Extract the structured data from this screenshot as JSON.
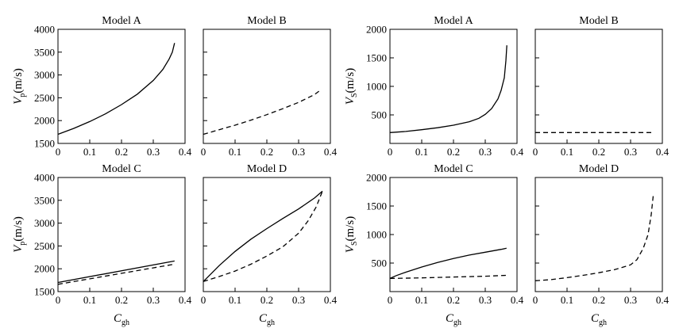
{
  "chart_data": [
    {
      "type": "line",
      "title": "Model A",
      "xlim": [
        0,
        0.4
      ],
      "ylim": [
        1500,
        4000
      ],
      "xticks": [
        0,
        0.1,
        0.2,
        0.3,
        0.4
      ],
      "yticks": [
        1500,
        2000,
        2500,
        3000,
        3500,
        4000
      ],
      "ytick_labels": [
        "1500",
        "2000",
        "2500",
        "3000",
        "3500",
        "4000"
      ],
      "xlabel": "",
      "ylabel": "V_p(m/s)",
      "series": [
        {
          "style": "solid",
          "x": [
            0,
            0.05,
            0.1,
            0.15,
            0.2,
            0.25,
            0.3,
            0.33,
            0.35,
            0.36,
            0.367
          ],
          "y": [
            1700,
            1830,
            1980,
            2150,
            2350,
            2580,
            2880,
            3120,
            3350,
            3500,
            3700
          ]
        }
      ]
    },
    {
      "type": "line",
      "title": "Model B",
      "xlim": [
        0,
        0.4
      ],
      "ylim": [
        1500,
        4000
      ],
      "xticks": [
        0,
        0.1,
        0.2,
        0.3,
        0.4
      ],
      "yticks": [
        1500,
        2000,
        2500,
        3000,
        3500,
        4000
      ],
      "ytick_labels": [],
      "xlabel": "",
      "ylabel": "",
      "series": [
        {
          "style": "dashed",
          "x": [
            0,
            0.05,
            0.1,
            0.15,
            0.2,
            0.25,
            0.3,
            0.35,
            0.367
          ],
          "y": [
            1700,
            1800,
            1900,
            2010,
            2130,
            2260,
            2400,
            2570,
            2660
          ]
        }
      ]
    },
    {
      "type": "line",
      "title": "Model A",
      "xlim": [
        0,
        0.4
      ],
      "ylim": [
        0,
        2000
      ],
      "xticks": [
        0,
        0.1,
        0.2,
        0.3,
        0.4
      ],
      "yticks": [
        500,
        1000,
        1500,
        2000
      ],
      "ytick_labels": [
        "500",
        "1000",
        "1500",
        "2000"
      ],
      "xlabel": "",
      "ylabel": "V_S(m/s)",
      "series": [
        {
          "style": "solid",
          "x": [
            0,
            0.05,
            0.1,
            0.15,
            0.2,
            0.25,
            0.28,
            0.3,
            0.32,
            0.34,
            0.35,
            0.36,
            0.365,
            0.368
          ],
          "y": [
            190,
            210,
            240,
            275,
            320,
            380,
            440,
            510,
            610,
            780,
            930,
            1150,
            1450,
            1720
          ]
        }
      ]
    },
    {
      "type": "line",
      "title": "Model B",
      "xlim": [
        0,
        0.4
      ],
      "ylim": [
        0,
        2000
      ],
      "xticks": [
        0,
        0.1,
        0.2,
        0.3,
        0.4
      ],
      "yticks": [
        500,
        1000,
        1500,
        2000
      ],
      "ytick_labels": [],
      "xlabel": "",
      "ylabel": "",
      "series": [
        {
          "style": "dashed",
          "x": [
            0,
            0.367
          ],
          "y": [
            190,
            190
          ]
        }
      ]
    },
    {
      "type": "line",
      "title": "Model C",
      "xlim": [
        0,
        0.4
      ],
      "ylim": [
        1500,
        4000
      ],
      "xticks": [
        0,
        0.1,
        0.2,
        0.3,
        0.4
      ],
      "yticks": [
        1500,
        2000,
        2500,
        3000,
        3500,
        4000
      ],
      "ytick_labels": [
        "1500",
        "2000",
        "2500",
        "3000",
        "3500",
        "4000"
      ],
      "xlabel": "C_gh",
      "ylabel": "V_p(m/s)",
      "series": [
        {
          "style": "solid",
          "x": [
            0,
            0.367
          ],
          "y": [
            1700,
            2170
          ]
        },
        {
          "style": "dashed",
          "x": [
            0,
            0.367
          ],
          "y": [
            1660,
            2100
          ]
        }
      ]
    },
    {
      "type": "line",
      "title": "Model D",
      "xlim": [
        0,
        0.4
      ],
      "ylim": [
        1500,
        4000
      ],
      "xticks": [
        0,
        0.1,
        0.2,
        0.3,
        0.4
      ],
      "yticks": [
        1500,
        2000,
        2500,
        3000,
        3500,
        4000
      ],
      "ytick_labels": [],
      "xlabel": "C_gh",
      "ylabel": "",
      "series": [
        {
          "style": "solid",
          "x": [
            0,
            0.05,
            0.1,
            0.15,
            0.2,
            0.25,
            0.3,
            0.35,
            0.375
          ],
          "y": [
            1720,
            2070,
            2380,
            2650,
            2880,
            3100,
            3310,
            3550,
            3700
          ]
        },
        {
          "style": "dashed",
          "x": [
            0,
            0.05,
            0.1,
            0.15,
            0.2,
            0.25,
            0.3,
            0.33,
            0.355,
            0.375
          ],
          "y": [
            1720,
            1830,
            1950,
            2100,
            2280,
            2480,
            2780,
            3050,
            3350,
            3700
          ]
        }
      ]
    },
    {
      "type": "line",
      "title": "Model C",
      "xlim": [
        0,
        0.4
      ],
      "ylim": [
        0,
        2000
      ],
      "xticks": [
        0,
        0.1,
        0.2,
        0.3,
        0.4
      ],
      "yticks": [
        500,
        1000,
        1500,
        2000
      ],
      "ytick_labels": [
        "500",
        "1000",
        "1500",
        "2000"
      ],
      "xlabel": "C_gh",
      "ylabel": "V_S(m/s)",
      "series": [
        {
          "style": "solid",
          "x": [
            0,
            0.02,
            0.05,
            0.1,
            0.15,
            0.2,
            0.25,
            0.3,
            0.35,
            0.367
          ],
          "y": [
            230,
            280,
            340,
            430,
            510,
            580,
            640,
            690,
            740,
            760
          ]
        },
        {
          "style": "dashed",
          "x": [
            0,
            0.1,
            0.2,
            0.3,
            0.367
          ],
          "y": [
            230,
            240,
            255,
            270,
            285
          ]
        }
      ]
    },
    {
      "type": "line",
      "title": "Model D",
      "xlim": [
        0,
        0.4
      ],
      "ylim": [
        0,
        2000
      ],
      "xticks": [
        0,
        0.1,
        0.2,
        0.3,
        0.4
      ],
      "yticks": [
        500,
        1000,
        1500,
        2000
      ],
      "ytick_labels": [],
      "xlabel": "C_gh",
      "ylabel": "",
      "series": [
        {
          "style": "dashed",
          "x": [
            0,
            0.05,
            0.1,
            0.15,
            0.2,
            0.25,
            0.3,
            0.32,
            0.34,
            0.355,
            0.365,
            0.372
          ],
          "y": [
            190,
            210,
            245,
            285,
            330,
            385,
            470,
            560,
            760,
            1000,
            1350,
            1720
          ]
        }
      ]
    }
  ]
}
